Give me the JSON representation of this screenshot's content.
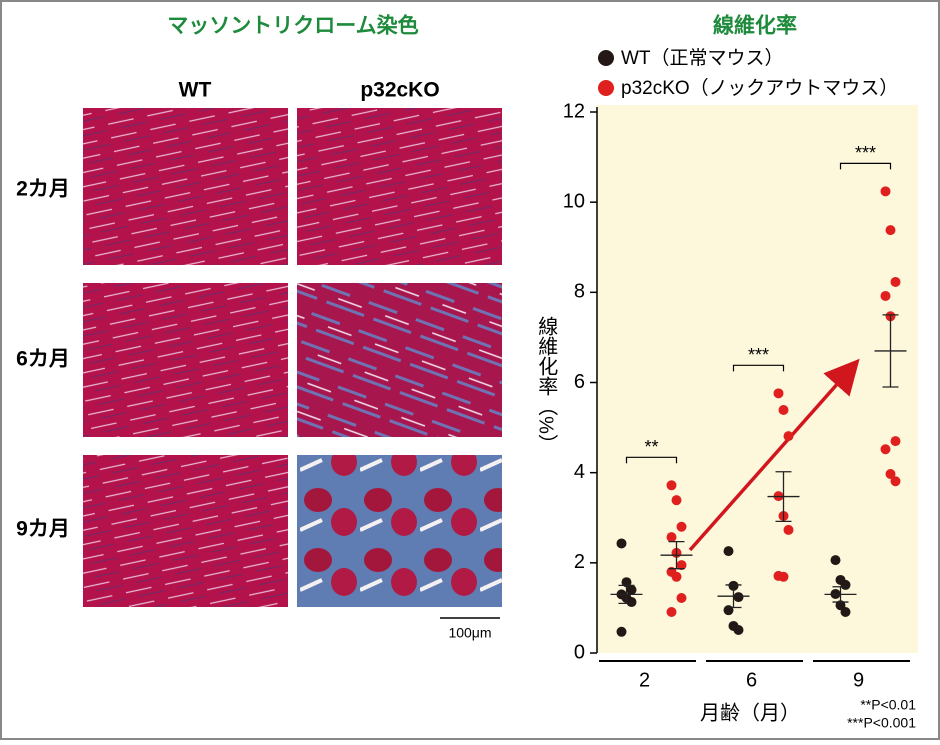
{
  "micrograph": {
    "title": "マッソントリクローム染色",
    "columns": [
      "WT",
      "p32cKO"
    ],
    "rows": [
      "2カ月",
      "6カ月",
      "9カ月"
    ],
    "scale_bar": "100μm"
  },
  "chart_data": {
    "type": "strip",
    "title": "線維化率",
    "y_label": "線維化率（%）",
    "x_label": "月齢（月）",
    "categories": [
      "2",
      "6",
      "9"
    ],
    "series": [
      {
        "name": "WT（正常マウス）",
        "color": "#231815",
        "values": [
          [
            2.43,
            1.57,
            1.4,
            1.3,
            1.22,
            1.13,
            0.47
          ],
          [
            2.26,
            1.49,
            1.24,
            0.95,
            0.6,
            0.51
          ],
          [
            2.06,
            1.62,
            1.51,
            1.31,
            1.06,
            0.91
          ]
        ],
        "mean": [
          1.3,
          1.26,
          1.3
        ],
        "sem": [
          0.2,
          0.25,
          0.17
        ]
      },
      {
        "name": "p32cKO（ノックアウトマウス）",
        "color": "#e0201f",
        "values": [
          [
            3.72,
            3.39,
            2.8,
            2.57,
            2.22,
            1.95,
            1.8,
            1.69,
            1.22,
            0.91
          ],
          [
            5.76,
            5.39,
            4.81,
            3.48,
            3.04,
            2.73,
            1.71,
            1.69
          ],
          [
            10.24,
            9.38,
            8.23,
            7.92,
            7.47,
            4.7,
            4.52,
            3.97,
            3.81
          ]
        ],
        "mean": [
          2.17,
          3.47,
          6.7
        ],
        "sem": [
          0.3,
          0.55,
          0.8
        ]
      }
    ],
    "ylim": [
      0,
      12
    ],
    "yticks": [
      0,
      2,
      4,
      6,
      8,
      10,
      12
    ],
    "annotations": [
      {
        "text": "**",
        "category": "2"
      },
      {
        "text": "***",
        "category": "6"
      },
      {
        "text": "***",
        "category": "9"
      }
    ],
    "notes": [
      "**P<0.01",
      "***P<0.001"
    ]
  }
}
